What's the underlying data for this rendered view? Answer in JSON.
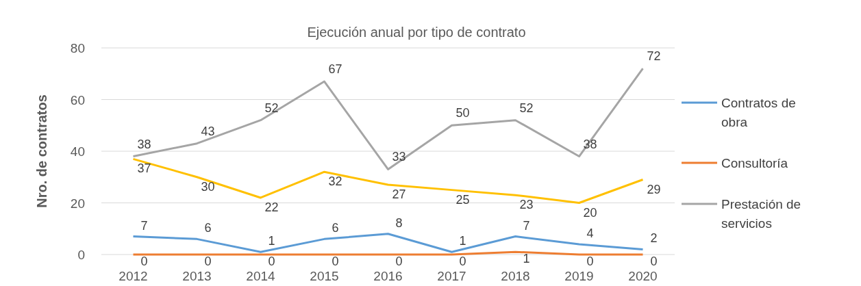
{
  "chart_data": {
    "type": "line",
    "title": "Ejecución anual por tipo de contrato",
    "ylabel": "Nro. de contratos",
    "categories": [
      "2012",
      "2013",
      "2014",
      "2015",
      "2016",
      "2017",
      "2018",
      "2019",
      "2020"
    ],
    "series": [
      {
        "name": "Contratos de obra",
        "color": "#5b9bd5",
        "values": [
          7,
          6,
          1,
          6,
          8,
          1,
          7,
          4,
          2
        ]
      },
      {
        "name": "Consultoría",
        "color": "#ed7d31",
        "values": [
          0,
          0,
          0,
          0,
          0,
          0,
          1,
          0,
          0
        ]
      },
      {
        "name": "Prestación de servicios",
        "color": "#a5a5a5",
        "values": [
          38,
          43,
          52,
          67,
          33,
          50,
          52,
          38,
          72
        ]
      },
      {
        "color": "#ffc000",
        "values": [
          37,
          30,
          22,
          32,
          27,
          25,
          23,
          20,
          29
        ]
      }
    ],
    "ylim": [
      0,
      80
    ],
    "yticks": [
      0,
      20,
      40,
      60,
      80
    ],
    "grid": "y",
    "legend": "right",
    "data_labels": true,
    "marker": "none",
    "line_style": "solid"
  }
}
